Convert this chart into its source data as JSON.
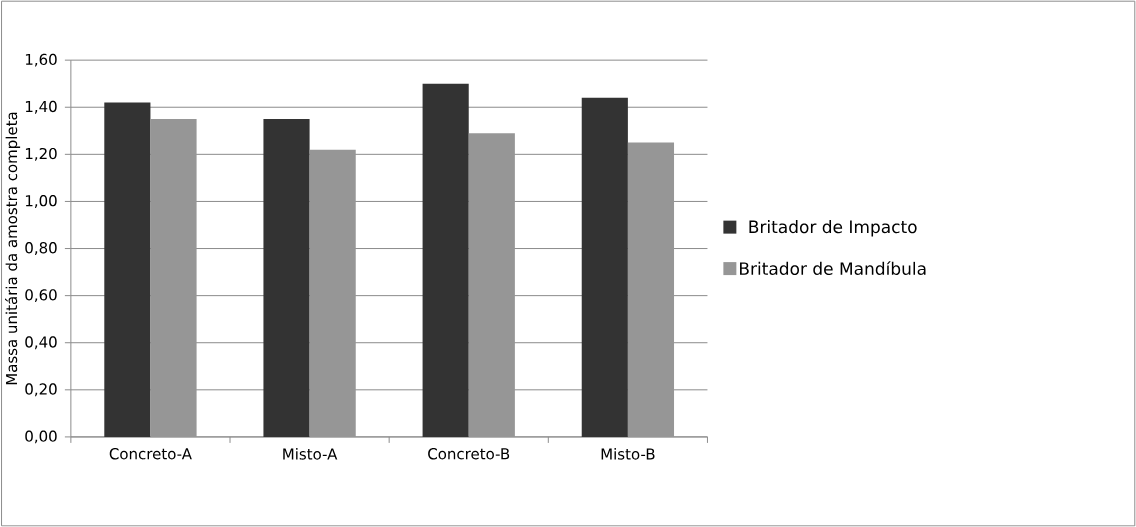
{
  "chart_data": {
    "type": "bar",
    "ylabel": "Massa unitária da amostra completa",
    "categories": [
      "Concreto-A",
      "Misto-A",
      "Concreto-B",
      "Misto-B"
    ],
    "series": [
      {
        "name": "Britador de Impacto",
        "color": "#333333",
        "values": [
          1.42,
          1.35,
          1.5,
          1.44
        ]
      },
      {
        "name": "Britador de Mandíbula",
        "color": "#969696",
        "values": [
          1.35,
          1.22,
          1.29,
          1.25
        ]
      }
    ],
    "ylim": [
      0,
      1.6
    ],
    "yticks": [
      {
        "value": 0,
        "label": "0,00"
      },
      {
        "value": 0.2,
        "label": "0,20"
      },
      {
        "value": 0.4,
        "label": "0,40"
      },
      {
        "value": 0.6,
        "label": "0,60"
      },
      {
        "value": 0.8,
        "label": "0,80"
      },
      {
        "value": 1.0,
        "label": "1,00"
      },
      {
        "value": 1.2,
        "label": "1,20"
      },
      {
        "value": 1.4,
        "label": "1,40"
      },
      {
        "value": 1.6,
        "label": "1,60"
      }
    ],
    "grid": "y",
    "legend": "right"
  }
}
